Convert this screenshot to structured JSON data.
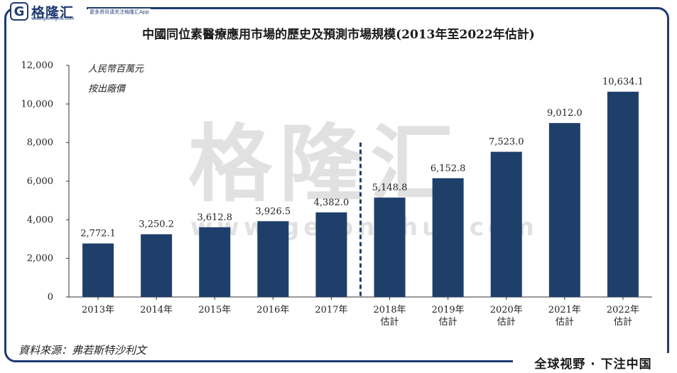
{
  "header": {
    "logo_mark": "G",
    "logo_text": "格隆汇",
    "logo_url": "www.gelonghui.com",
    "tagline": "更多资讯请关注格隆汇App"
  },
  "watermark": {
    "text": "格隆汇",
    "url": "www.gelonghui.com"
  },
  "footer": {
    "source": "資料來源：弗若斯特沙利文",
    "slogan": "全球视野 · 下注中国"
  },
  "chart_data": {
    "type": "bar",
    "title": "中國同位素醫療應用市場的歷史及預測市場規模(2013年至2022年估計)",
    "unit_line1": "人民幣百萬元",
    "unit_line2": "按出廠價",
    "categories": [
      [
        "2013年"
      ],
      [
        "2014年"
      ],
      [
        "2015年"
      ],
      [
        "2016年"
      ],
      [
        "2017年"
      ],
      [
        "2018年",
        "估計"
      ],
      [
        "2019年",
        "估計"
      ],
      [
        "2020年",
        "估計"
      ],
      [
        "2021年",
        "估計"
      ],
      [
        "2022年",
        "估計"
      ]
    ],
    "values": [
      2772.1,
      3250.2,
      3612.8,
      3926.5,
      4382.0,
      5148.8,
      6152.8,
      7523.0,
      9012.0,
      10634.1
    ],
    "value_labels": [
      "2,772.1",
      "3,250.2",
      "3,612.8",
      "3,926.5",
      "4,382.0",
      "5,148.8",
      "6,152.8",
      "7,523.0",
      "9,012.0",
      "10,634.1"
    ],
    "ylim": [
      0,
      12000
    ],
    "yticks": [
      0,
      2000,
      4000,
      6000,
      8000,
      10000,
      12000
    ],
    "ytick_labels": [
      "0",
      "2,000",
      "4,000",
      "6,000",
      "8,000",
      "10,000",
      "12,000"
    ],
    "forecast_divider_after_index": 4,
    "bar_color": "#1f3f6b",
    "grid": false
  }
}
